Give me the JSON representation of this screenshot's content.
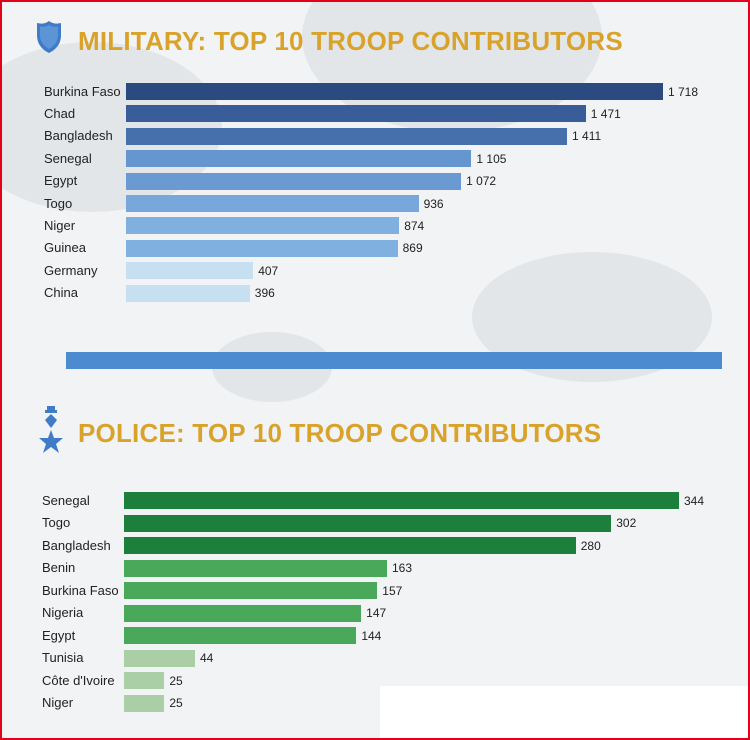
{
  "colors": {
    "frame_border": "#e3001b",
    "title": "#d9a32b",
    "divider": "#4c8bd0",
    "military_icon": "#3f7bc6",
    "police_icon": "#3f7bc6"
  },
  "military": {
    "icon": "shield-icon",
    "title": "MILITARY: TOP 10 TROOP CONTRIBUTORS"
  },
  "police": {
    "icon": "star-medal-icon",
    "title": "POLICE: TOP 10 TROOP CONTRIBUTORS"
  },
  "chart_data": [
    {
      "type": "bar",
      "orientation": "horizontal",
      "title": "MILITARY: TOP 10 TROOP CONTRIBUTORS",
      "categories": [
        "Burkina Faso",
        "Chad",
        "Bangladesh",
        "Senegal",
        "Egypt",
        "Togo",
        "Niger",
        "Guinea",
        "Germany",
        "China"
      ],
      "values": [
        1718,
        1471,
        1411,
        1105,
        1072,
        936,
        874,
        869,
        407,
        396
      ],
      "value_labels": [
        "1 718",
        "1 471",
        "1 411",
        "1 105",
        "1 072",
        "936",
        "874",
        "869",
        "407",
        "396"
      ],
      "colors": [
        "#2b4a80",
        "#385d98",
        "#4670ab",
        "#6596cf",
        "#6b9ad2",
        "#78a8db",
        "#7fb0df",
        "#7fb0df",
        "#c7e0f1",
        "#c7e0f1"
      ],
      "xlim": [
        0,
        1718
      ],
      "xlabel": "",
      "ylabel": ""
    },
    {
      "type": "bar",
      "orientation": "horizontal",
      "title": "POLICE: TOP 10 TROOP CONTRIBUTORS",
      "categories": [
        "Senegal",
        "Togo",
        "Bangladesh",
        "Benin",
        "Burkina Faso",
        "Nigeria",
        "Egypt",
        "Tunisia",
        "Côte d'Ivoire",
        "Niger"
      ],
      "values": [
        344,
        302,
        280,
        163,
        157,
        147,
        144,
        44,
        25,
        25
      ],
      "value_labels": [
        "344",
        "302",
        "280",
        "163",
        "157",
        "147",
        "144",
        "44",
        "25",
        "25"
      ],
      "colors": [
        "#1c7f3b",
        "#1c7f3b",
        "#1c7f3b",
        "#4aa85a",
        "#4aa85a",
        "#4aa85a",
        "#4aa85a",
        "#aacfa6",
        "#aacfa6",
        "#aacfa6"
      ],
      "xlim": [
        0,
        344
      ],
      "xlabel": "",
      "ylabel": ""
    }
  ]
}
